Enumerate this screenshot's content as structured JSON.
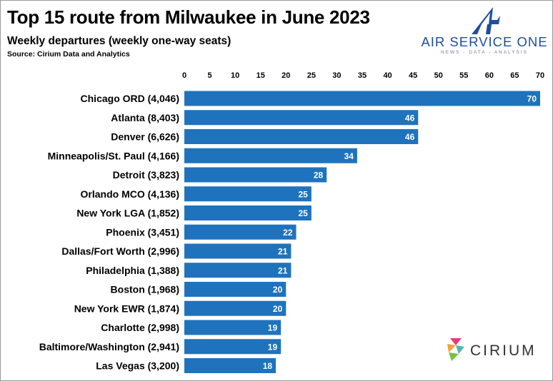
{
  "header": {
    "title": "Top 15 route from Milwaukee in June 2023",
    "subtitle": "Weekly departures (weekly one-way seats)",
    "source": "Source: Cirium Data and Analytics"
  },
  "logos": {
    "air_service_one": {
      "name": "AIR SERVICE ONE",
      "tagline": "NEWS - DATA - ANALYSIS"
    },
    "cirium": {
      "name": "CIRIUM"
    }
  },
  "colors": {
    "bar": "#1f73bd",
    "brand_blue": "#1f4e9c"
  },
  "chart_data": {
    "type": "bar",
    "orientation": "horizontal",
    "title": "Top 15 route from Milwaukee in June 2023",
    "subtitle": "Weekly departures (weekly one-way seats)",
    "xlim": [
      0,
      70
    ],
    "x_ticks": [
      0,
      5,
      10,
      15,
      20,
      25,
      30,
      35,
      40,
      45,
      50,
      55,
      60,
      65,
      70
    ],
    "x_axis_position": "top",
    "grid": false,
    "categories": [
      "Chicago ORD (4,046)",
      "Atlanta (8,403)",
      "Denver (6,626)",
      "Minneapolis/St. Paul (4,166)",
      "Detroit (3,823)",
      "Orlando MCO (4,136)",
      "New York LGA (1,852)",
      "Phoenix (3,451)",
      "Dallas/Fort Worth (2,996)",
      "Philadelphia (1,388)",
      "Boston (1,968)",
      "New York EWR (1,874)",
      "Charlotte (2,998)",
      "Baltimore/Washington (2,941)",
      "Las Vegas (3,200)"
    ],
    "values": [
      70,
      46,
      46,
      34,
      28,
      25,
      25,
      22,
      21,
      21,
      20,
      20,
      19,
      19,
      18
    ]
  }
}
